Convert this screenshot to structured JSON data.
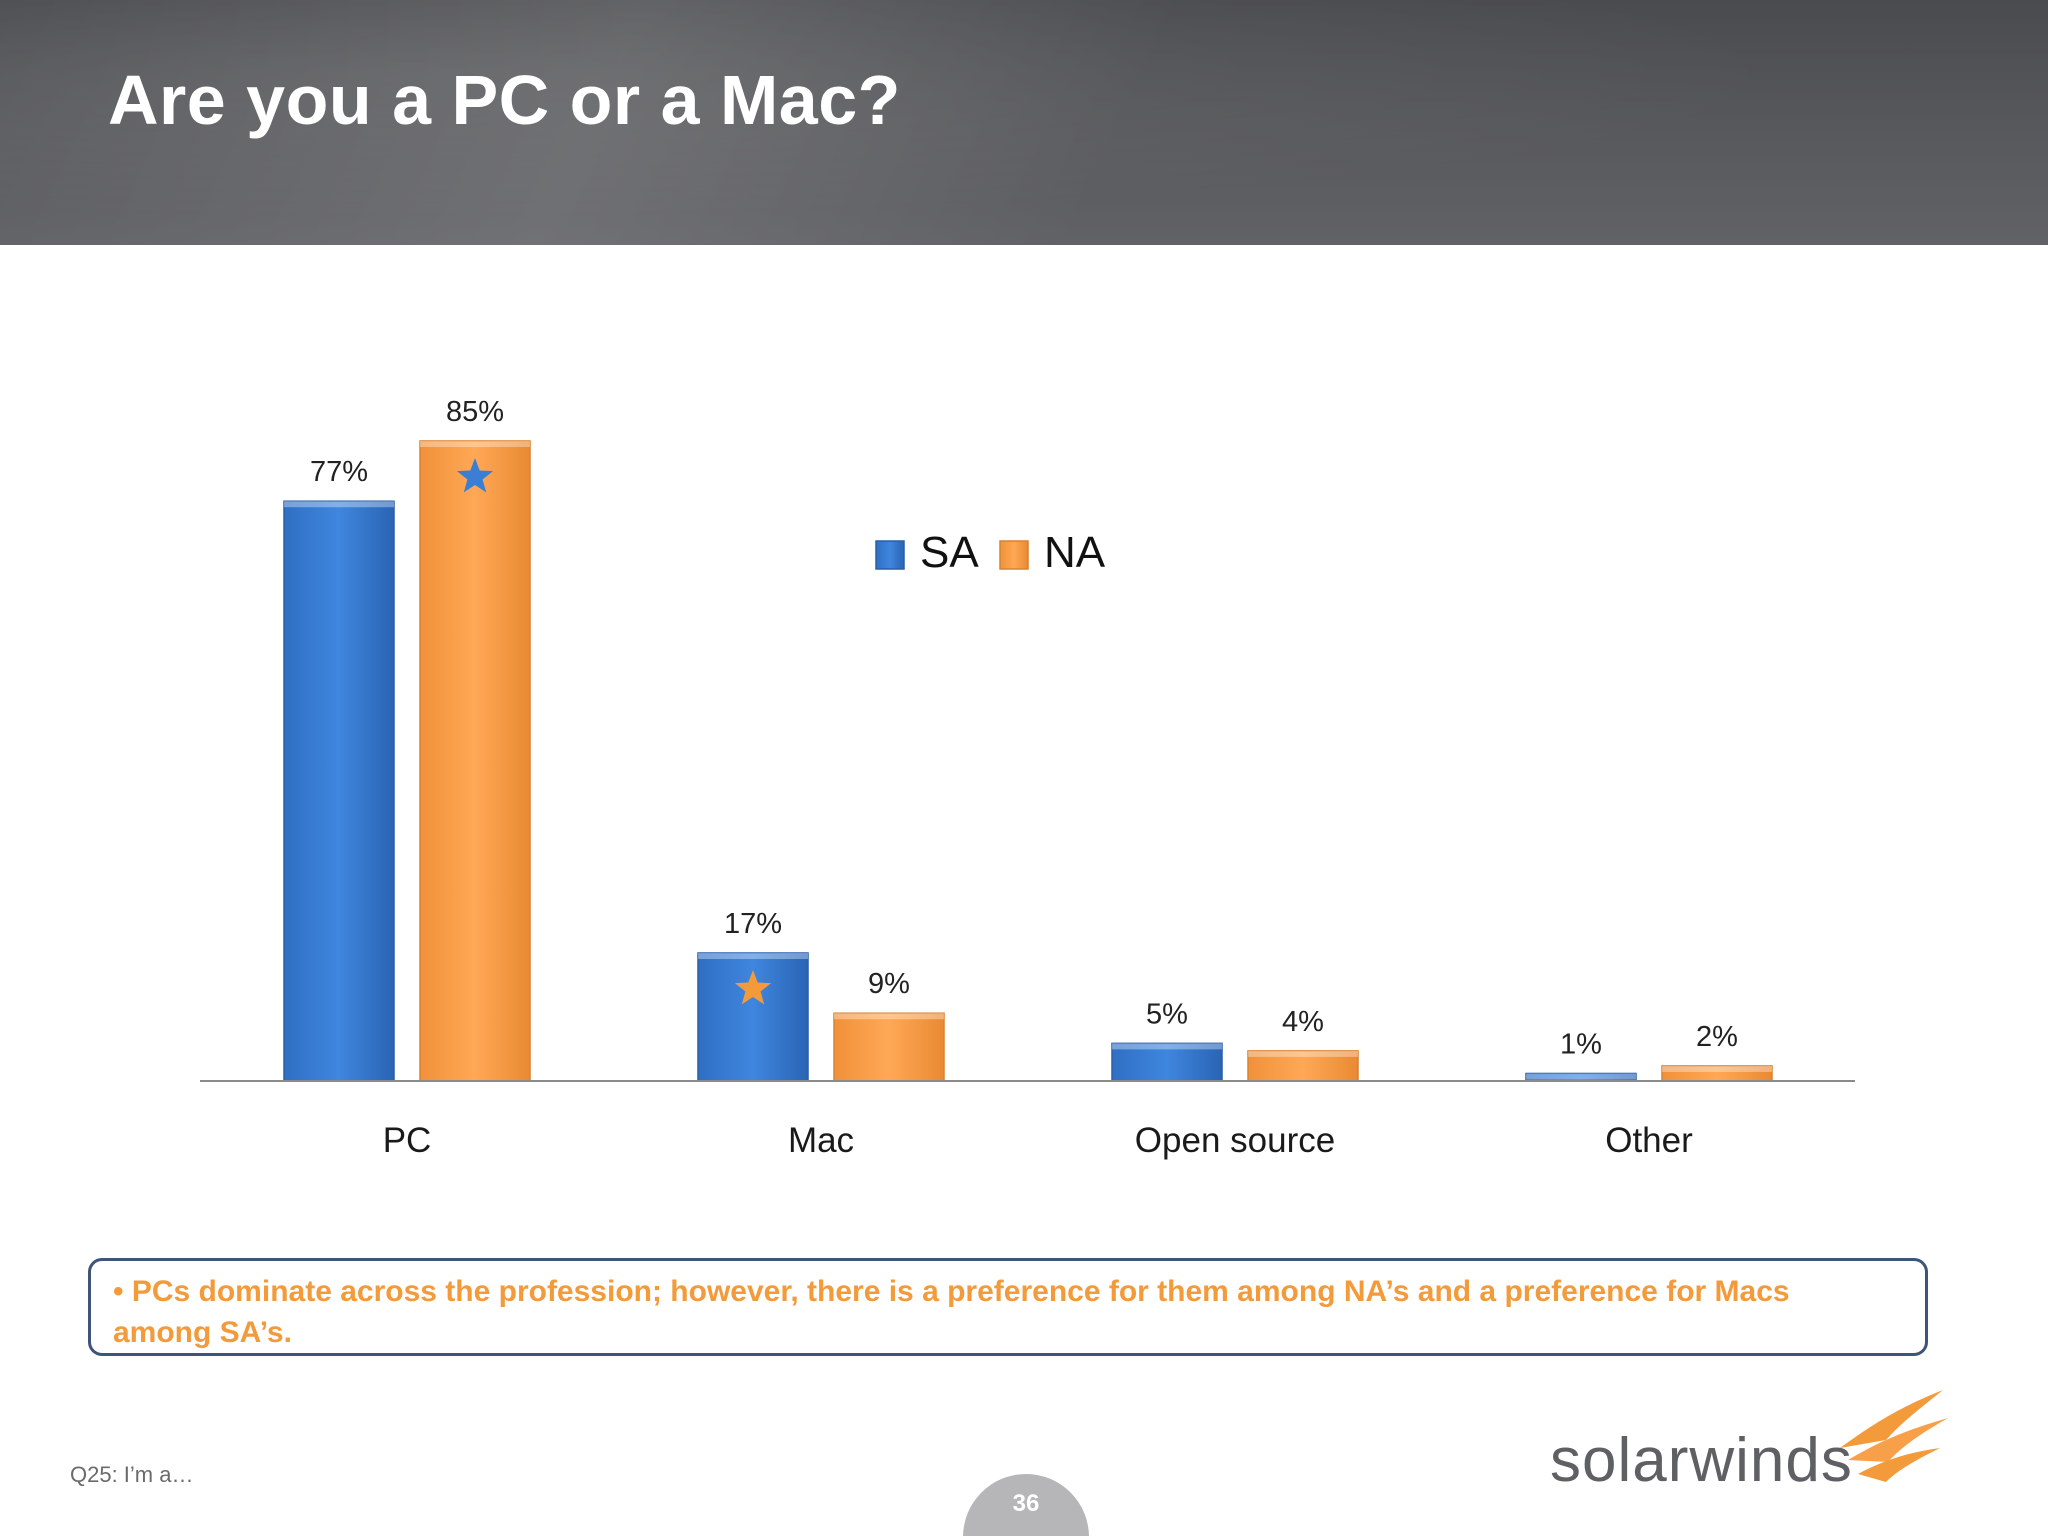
{
  "header": {
    "title": "Are you a PC or a Mac?"
  },
  "chart_data": {
    "type": "bar",
    "categories": [
      "PC",
      "Mac",
      "Open source",
      "Other"
    ],
    "series": [
      {
        "name": "SA",
        "values": [
          77,
          17,
          5,
          1
        ],
        "labels": [
          "77%",
          "17%",
          "5%",
          "1%"
        ],
        "color": "#3a7ed6"
      },
      {
        "name": "NA",
        "values": [
          85,
          9,
          4,
          2
        ],
        "labels": [
          "85%",
          "9%",
          "4%",
          "2%"
        ],
        "color": "#f7a049"
      }
    ],
    "ylim": [
      0,
      85
    ],
    "grid": false,
    "legend_position": "top-center",
    "annotations": [
      {
        "category": "PC",
        "series": "NA",
        "marker": "star",
        "color": "#3a7ed6"
      },
      {
        "category": "Mac",
        "series": "SA",
        "marker": "star",
        "color": "#f39a3b"
      }
    ]
  },
  "note": {
    "text": "• PCs dominate across the profession; however, there is a preference for them among NA’s and a preference for Macs among SA’s."
  },
  "footnote": "Q25: I’m a…",
  "page_number": "36",
  "logo": {
    "text": "solarwinds",
    "icon": "solarwinds-flame-icon"
  },
  "colors": {
    "accent_orange": "#f39a3b",
    "header_gray": "#58595c",
    "box_border": "#3e5578"
  }
}
